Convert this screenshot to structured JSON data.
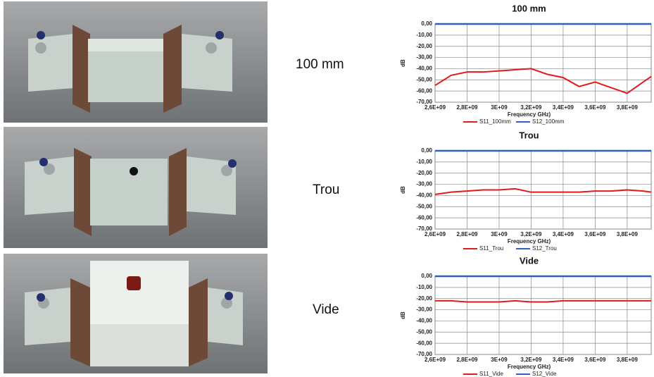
{
  "row_labels": [
    "100 mm",
    "Trou",
    "Vide"
  ],
  "chart_data": [
    {
      "type": "line",
      "title": "100 mm",
      "x_label": "Frequency GHz)",
      "y_label": "dB",
      "x": [
        2600000000,
        2700000000,
        2800000000,
        2900000000,
        3000000000,
        3100000000,
        3200000000,
        3300000000,
        3400000000,
        3500000000,
        3600000000,
        3700000000,
        3800000000,
        3900000000,
        3950000000
      ],
      "series": [
        {
          "name": "S11_100mm",
          "color": "#e31a1c",
          "values": [
            -55,
            -46,
            -43,
            -43,
            -42,
            -41,
            -40,
            -45,
            -48,
            -56,
            -52,
            -57,
            -62,
            -52,
            -47
          ]
        },
        {
          "name": "S12_100mm",
          "color": "#2e62b8",
          "values": [
            0,
            0,
            0,
            0,
            0,
            0,
            0,
            0,
            0,
            0,
            0,
            0,
            0,
            0,
            0
          ]
        }
      ],
      "xlim": [
        2600000000,
        3950000000
      ],
      "xticks": [
        {
          "value": 2600000000,
          "label": "2,6E+09"
        },
        {
          "value": 2800000000,
          "label": "2,8E+09"
        },
        {
          "value": 3000000000,
          "label": "3E+09"
        },
        {
          "value": 3200000000,
          "label": "3,2E+09"
        },
        {
          "value": 3400000000,
          "label": "3,4E+09"
        },
        {
          "value": 3600000000,
          "label": "3,6E+09"
        },
        {
          "value": 3800000000,
          "label": "3,8E+09"
        }
      ],
      "ylim": [
        -70,
        0
      ],
      "yticks": [
        {
          "value": 0,
          "label": "0,00"
        },
        {
          "value": -10,
          "label": "-10,00"
        },
        {
          "value": -20,
          "label": "-20,00"
        },
        {
          "value": -30,
          "label": "-30,00"
        },
        {
          "value": -40,
          "label": "-40,00"
        },
        {
          "value": -50,
          "label": "-50,00"
        },
        {
          "value": -60,
          "label": "-60,00"
        },
        {
          "value": -70,
          "label": "-70,00"
        }
      ],
      "grid": true
    },
    {
      "type": "line",
      "title": "Trou",
      "x_label": "Frequency GHz)",
      "y_label": "dB",
      "x": [
        2600000000,
        2700000000,
        2800000000,
        2900000000,
        3000000000,
        3100000000,
        3200000000,
        3300000000,
        3400000000,
        3500000000,
        3600000000,
        3700000000,
        3800000000,
        3900000000,
        3950000000
      ],
      "series": [
        {
          "name": "S11_Trou",
          "color": "#e31a1c",
          "values": [
            -39,
            -37,
            -36,
            -35,
            -35,
            -34,
            -37,
            -37,
            -37,
            -37,
            -36,
            -36,
            -35,
            -36,
            -37
          ]
        },
        {
          "name": "S12_Trou",
          "color": "#2e62b8",
          "values": [
            0,
            0,
            0,
            0,
            0,
            0,
            0,
            0,
            0,
            0,
            0,
            0,
            0,
            0,
            0
          ]
        }
      ],
      "xlim": [
        2600000000,
        3950000000
      ],
      "xticks": [
        {
          "value": 2600000000,
          "label": "2,6E+09"
        },
        {
          "value": 2800000000,
          "label": "2,8E+09"
        },
        {
          "value": 3000000000,
          "label": "3E+09"
        },
        {
          "value": 3200000000,
          "label": "3,2E+09"
        },
        {
          "value": 3400000000,
          "label": "3,4E+09"
        },
        {
          "value": 3600000000,
          "label": "3,6E+09"
        },
        {
          "value": 3800000000,
          "label": "3,8E+09"
        }
      ],
      "ylim": [
        -70,
        0
      ],
      "yticks": [
        {
          "value": 0,
          "label": "0,00"
        },
        {
          "value": -10,
          "label": "-10,00"
        },
        {
          "value": -20,
          "label": "-20,00"
        },
        {
          "value": -30,
          "label": "-30,00"
        },
        {
          "value": -40,
          "label": "-40,00"
        },
        {
          "value": -50,
          "label": "-50,00"
        },
        {
          "value": -60,
          "label": "-60,00"
        },
        {
          "value": -70,
          "label": "-70,00"
        }
      ],
      "grid": true
    },
    {
      "type": "line",
      "title": "Vide",
      "x_label": "Frequency GHz)",
      "y_label": "dB",
      "x": [
        2600000000,
        2700000000,
        2800000000,
        2900000000,
        3000000000,
        3100000000,
        3200000000,
        3300000000,
        3400000000,
        3500000000,
        3600000000,
        3700000000,
        3800000000,
        3900000000,
        3950000000
      ],
      "series": [
        {
          "name": "S11_Vide",
          "color": "#e31a1c",
          "values": [
            -22,
            -22,
            -23,
            -23,
            -23,
            -22,
            -23,
            -23,
            -22,
            -22,
            -22,
            -22,
            -22,
            -22,
            -22
          ]
        },
        {
          "name": "S12_Vide",
          "color": "#2e62b8",
          "values": [
            0,
            0,
            0,
            0,
            0,
            0,
            0,
            0,
            0,
            0,
            0,
            0,
            0,
            0,
            0
          ]
        }
      ],
      "xlim": [
        2600000000,
        3950000000
      ],
      "xticks": [
        {
          "value": 2600000000,
          "label": "2,6E+09"
        },
        {
          "value": 2800000000,
          "label": "2,8E+09"
        },
        {
          "value": 3000000000,
          "label": "3E+09"
        },
        {
          "value": 3200000000,
          "label": "3,2E+09"
        },
        {
          "value": 3400000000,
          "label": "3,4E+09"
        },
        {
          "value": 3600000000,
          "label": "3,6E+09"
        },
        {
          "value": 3800000000,
          "label": "3,8E+09"
        }
      ],
      "ylim": [
        -70,
        0
      ],
      "yticks": [
        {
          "value": 0,
          "label": "0,00"
        },
        {
          "value": -10,
          "label": "-10,00"
        },
        {
          "value": -20,
          "label": "-20,00"
        },
        {
          "value": -30,
          "label": "-30,00"
        },
        {
          "value": -40,
          "label": "-40,00"
        },
        {
          "value": -50,
          "label": "-50,00"
        },
        {
          "value": -60,
          "label": "-60,00"
        },
        {
          "value": -70,
          "label": "-70,00"
        }
      ],
      "grid": true
    }
  ]
}
